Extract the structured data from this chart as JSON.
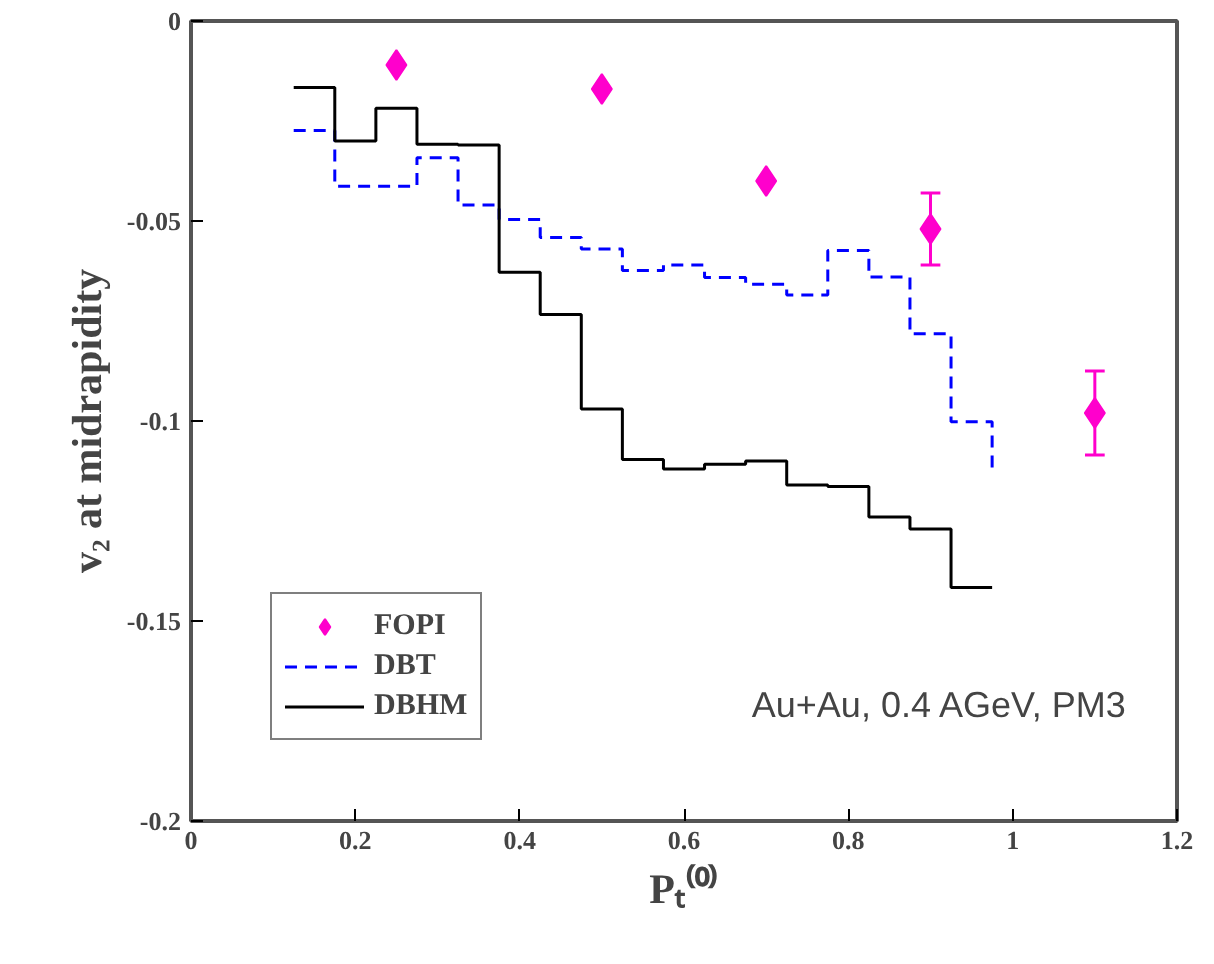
{
  "chart_data": {
    "type": "step",
    "xlabel": "Pₜ⁽⁰⁾",
    "ylabel": "v₂ at midrapidity",
    "annotations": [
      "Au+Au, 0.4 AGeV, PM3"
    ],
    "xlim": [
      0,
      1.2
    ],
    "xticks": [
      0,
      0.2,
      0.4,
      0.6,
      0.8,
      1,
      1.2
    ],
    "ylim": [
      -0.2,
      0
    ],
    "yticks": [
      -0.2,
      -0.15,
      -0.1,
      -0.05,
      0
    ],
    "grid": false,
    "legend": "bottom left",
    "series": [
      {
        "name": "FOPI",
        "type": "scatter",
        "marker": "diamond",
        "color": "#ff00cc",
        "x": [
          0.25,
          0.5,
          0.7,
          0.9,
          1.1
        ],
        "values": [
          -0.011,
          -0.017,
          -0.04,
          -0.052,
          -0.098
        ],
        "errors": [
          null,
          null,
          null,
          0.009,
          0.0105
        ]
      },
      {
        "name": "DBT",
        "line_style": "dashed",
        "color": "#0000ff",
        "x": [
          0.125,
          0.175,
          0.225,
          0.275,
          0.325,
          0.375,
          0.425,
          0.475,
          0.525,
          0.575,
          0.625,
          0.675,
          0.725,
          0.775,
          0.825,
          0.875,
          0.925,
          0.975
        ],
        "values": [
          -0.0274,
          -0.0413,
          -0.0413,
          -0.0342,
          -0.046,
          -0.0496,
          -0.0541,
          -0.057,
          -0.0624,
          -0.061,
          -0.0641,
          -0.0658,
          -0.0685,
          -0.0574,
          -0.064,
          -0.0782,
          -0.1002,
          -0.112
        ]
      },
      {
        "name": "DBHM",
        "line_style": "solid",
        "color": "#000000",
        "x": [
          0.125,
          0.175,
          0.225,
          0.275,
          0.325,
          0.375,
          0.425,
          0.475,
          0.525,
          0.575,
          0.625,
          0.675,
          0.725,
          0.775,
          0.825,
          0.875,
          0.925,
          0.975
        ],
        "values": [
          -0.0166,
          -0.03,
          -0.0218,
          -0.0308,
          -0.031,
          -0.0628,
          -0.0734,
          -0.097,
          -0.1096,
          -0.112,
          -0.1108,
          -0.11,
          -0.116,
          -0.1164,
          -0.124,
          -0.127,
          -0.1416,
          -0.1416
        ]
      }
    ]
  }
}
